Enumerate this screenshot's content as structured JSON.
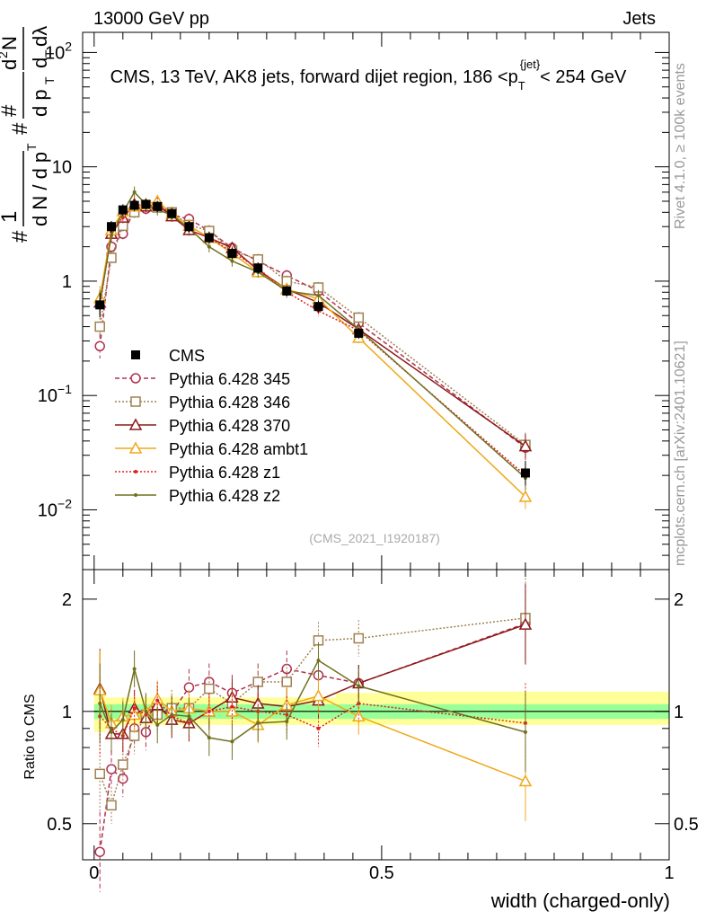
{
  "header": {
    "left": "13000 GeV pp",
    "right": "Jets"
  },
  "side_labels": {
    "rivet": "Rivet 4.1.0, ≥ 100k events",
    "mcplots": "mcplots.cern.ch [arXiv:2401.10621]"
  },
  "chart_data": [
    {
      "type": "line",
      "title": "CMS, 13 TeV, AK8 jets, forward dijet region, 186 <p_T^{jet}>< 254 GeV",
      "title_parts": {
        "main": "CMS, 13 TeV, AK8 jets, forward dijet region, 186 <p",
        "sub": "T",
        "sup": "{jet}",
        "tail": "< 254 GeV"
      },
      "ylabel": "1/dN/dpT d²N/dpT dλ",
      "yscale": "log",
      "ylim": [
        0.003,
        150
      ],
      "xlim": [
        -0.02,
        1.0
      ],
      "ytick_labels": [
        "10^-2",
        "10^-1",
        "1",
        "10",
        "10^2"
      ],
      "ref_label": "(CMS_2021_I1920187)",
      "legend_position": "center-left",
      "x": [
        0.01,
        0.03,
        0.05,
        0.07,
        0.09,
        0.11,
        0.135,
        0.165,
        0.2,
        0.24,
        0.285,
        0.335,
        0.39,
        0.46,
        0.75
      ],
      "series": [
        {
          "name": "CMS",
          "color": "#000000",
          "marker": "square-filled",
          "values": [
            0.62,
            3.0,
            4.2,
            4.6,
            4.7,
            4.5,
            3.9,
            3.0,
            2.4,
            1.75,
            1.3,
            0.82,
            0.6,
            0.35,
            0.021
          ]
        },
        {
          "name": "Pythia 6.428 345",
          "color": "#b03050",
          "marker": "circle-open",
          "dash": "5,3",
          "values": [
            0.27,
            2.0,
            2.6,
            4.1,
            4.3,
            4.5,
            3.8,
            3.5,
            2.75,
            1.95,
            1.5,
            1.12,
            0.82,
            0.43,
            0.035
          ]
        },
        {
          "name": "Pythia 6.428 346",
          "color": "#a08050",
          "marker": "square-open",
          "dash": "2,2",
          "values": [
            0.4,
            1.6,
            3.05,
            4.0,
            4.6,
            4.4,
            4.0,
            3.1,
            2.75,
            1.85,
            1.55,
            1.0,
            0.88,
            0.48,
            0.037
          ]
        },
        {
          "name": "Pythia 6.428 370",
          "color": "#8b1a1a",
          "marker": "triangle-open",
          "values": [
            0.65,
            2.6,
            3.6,
            4.7,
            4.5,
            4.7,
            3.7,
            2.8,
            2.4,
            1.95,
            1.25,
            0.85,
            0.65,
            0.38,
            0.036
          ]
        },
        {
          "name": "Pythia 6.428 ambt1",
          "color": "#f0a818",
          "marker": "triangle-open",
          "values": [
            0.71,
            2.8,
            4.1,
            4.5,
            4.7,
            5.0,
            3.9,
            3.05,
            2.4,
            1.75,
            1.2,
            0.85,
            0.7,
            0.32,
            0.013
          ]
        },
        {
          "name": "Pythia 6.428 z1",
          "color": "#e02020",
          "marker": "dot",
          "dash": "2,2",
          "values": [
            0.6,
            2.7,
            3.6,
            4.7,
            4.6,
            4.8,
            3.8,
            2.8,
            2.4,
            1.8,
            1.3,
            0.8,
            0.55,
            0.37,
            0.02
          ]
        },
        {
          "name": "Pythia 6.428 z2",
          "color": "#707020",
          "marker": "dot",
          "values": [
            0.65,
            2.5,
            4.0,
            6.0,
            4.7,
            4.2,
            3.8,
            2.9,
            2.0,
            1.5,
            1.2,
            0.82,
            0.75,
            0.38,
            0.019
          ]
        }
      ]
    },
    {
      "type": "line",
      "ylabel": "Ratio to CMS",
      "xlabel": "width (charged-only)",
      "yscale": "log",
      "ylim": [
        0.4,
        2.4
      ],
      "xlim": [
        -0.02,
        1.0
      ],
      "yticks": [
        0.5,
        1,
        2
      ],
      "ytick_labels": [
        "0.5",
        "1",
        "2"
      ],
      "xticks": [
        0,
        0.5,
        1
      ],
      "xtick_labels": [
        "0",
        "0.5",
        "1"
      ],
      "bands": [
        {
          "label": "CMS uncertainty (outer)",
          "color": "#ffff99",
          "segments": [
            {
              "x": [
                0.0,
                0.02
              ],
              "y": [
                0.88,
                1.13
              ]
            },
            {
              "x": [
                0.02,
                0.42
              ],
              "y": [
                0.92,
                1.09
              ]
            },
            {
              "x": [
                0.42,
                0.5
              ],
              "y": [
                0.92,
                1.12
              ]
            },
            {
              "x": [
                0.5,
                1.0
              ],
              "y": [
                0.92,
                1.13
              ]
            }
          ]
        },
        {
          "label": "CMS uncertainty (inner)",
          "color": "#99ff99",
          "segments": [
            {
              "x": [
                0.0,
                1.0
              ],
              "y": [
                0.955,
                1.045
              ]
            }
          ]
        }
      ],
      "x": [
        0.01,
        0.03,
        0.05,
        0.07,
        0.09,
        0.11,
        0.135,
        0.165,
        0.2,
        0.24,
        0.285,
        0.335,
        0.39,
        0.46,
        0.75
      ],
      "series": [
        {
          "name": "Pythia 6.428 345",
          "color": "#b03050",
          "marker": "circle-open",
          "dash": "5,3",
          "values": [
            0.42,
            0.7,
            0.66,
            0.9,
            0.88,
            1.0,
            0.99,
            1.16,
            1.2,
            1.12,
            1.2,
            1.3,
            1.25,
            1.19,
            1.72
          ]
        },
        {
          "name": "Pythia 6.428 346",
          "color": "#a08050",
          "marker": "square-open",
          "dash": "2,2",
          "values": [
            0.68,
            0.56,
            0.72,
            0.86,
            0.98,
            0.98,
            1.02,
            1.02,
            1.15,
            1.05,
            1.2,
            1.2,
            1.55,
            1.57,
            1.78
          ]
        },
        {
          "name": "Pythia 6.428 370",
          "color": "#8b1a1a",
          "marker": "triangle-open",
          "values": [
            1.15,
            0.87,
            0.87,
            1.02,
            0.96,
            1.04,
            0.95,
            0.93,
            1.0,
            1.09,
            1.05,
            1.03,
            1.07,
            1.19,
            1.71
          ]
        },
        {
          "name": "Pythia 6.428 ambt1",
          "color": "#f0a818",
          "marker": "triangle-open",
          "values": [
            1.14,
            0.93,
            0.97,
            0.98,
            1.0,
            1.08,
            1.0,
            1.02,
            1.0,
            1.0,
            0.92,
            1.04,
            1.1,
            0.97,
            0.65
          ]
        },
        {
          "name": "Pythia 6.428 z1",
          "color": "#e02020",
          "marker": "dot",
          "dash": "2,2",
          "values": [
            0.97,
            0.9,
            0.86,
            1.02,
            0.98,
            1.07,
            0.97,
            0.93,
            1.0,
            1.03,
            1.0,
            0.98,
            0.9,
            1.05,
            0.93
          ]
        },
        {
          "name": "Pythia 6.428 z2",
          "color": "#707020",
          "marker": "dot",
          "values": [
            1.05,
            0.88,
            0.95,
            1.3,
            1.0,
            0.92,
            0.98,
            0.97,
            0.85,
            0.83,
            0.93,
            0.94,
            1.37,
            1.17,
            0.88
          ]
        }
      ]
    }
  ]
}
